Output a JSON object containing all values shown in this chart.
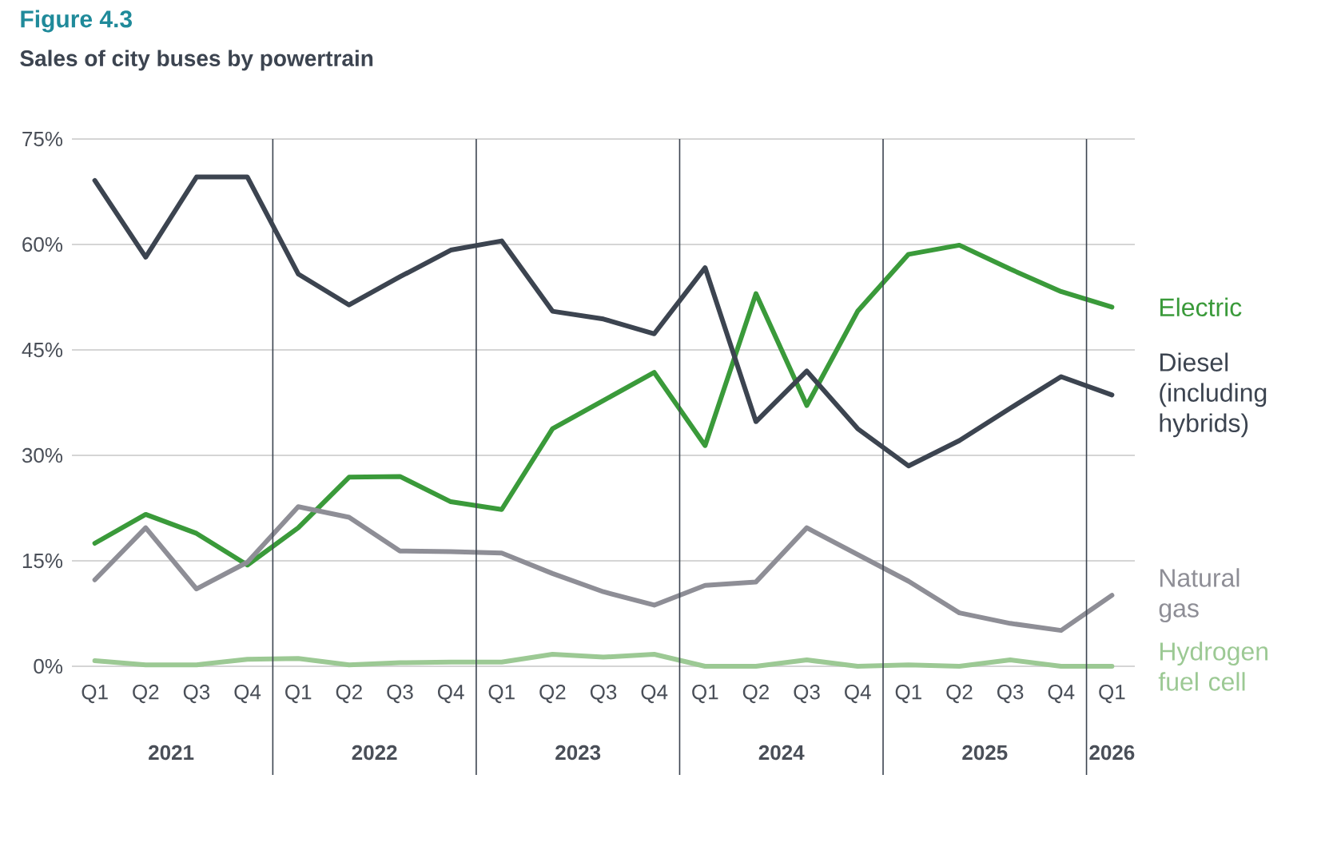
{
  "chart_data": {
    "type": "line",
    "title": "Figure 4.3",
    "subtitle": "Sales of city buses by powertrain",
    "categories": [
      "Q1",
      "Q2",
      "Q3",
      "Q4",
      "Q1",
      "Q2",
      "Q3",
      "Q4",
      "Q1",
      "Q2",
      "Q3",
      "Q4",
      "Q1",
      "Q2",
      "Q3",
      "Q4",
      "Q1",
      "Q2",
      "Q3",
      "Q4",
      "Q1"
    ],
    "annotations": [
      "2021",
      "2022",
      "2023",
      "2024",
      "2025",
      "2026"
    ],
    "series": [
      {
        "name": "Electric",
        "color": "#3a9a3a",
        "values": [
          17.5,
          21.6,
          18.9,
          14.4,
          19.7,
          26.9,
          27.0,
          23.4,
          22.3,
          33.8,
          37.8,
          41.8,
          31.4,
          53.0,
          37.1,
          50.5,
          58.6,
          59.9,
          56.5,
          53.3,
          51.1
        ]
      },
      {
        "name": "Diesel (including hybrids)",
        "color": "#3c4450",
        "values": [
          69.1,
          58.2,
          69.6,
          69.6,
          55.8,
          51.4,
          55.4,
          59.2,
          60.5,
          50.5,
          49.4,
          47.3,
          56.7,
          34.8,
          42.0,
          33.8,
          28.5,
          32.1,
          36.7,
          41.2,
          38.6
        ]
      },
      {
        "name": "Natural gas",
        "color": "#8e8e96",
        "values": [
          12.3,
          19.7,
          11.0,
          14.8,
          22.7,
          21.2,
          16.4,
          16.3,
          16.1,
          13.2,
          10.6,
          8.7,
          11.5,
          12.0,
          19.7,
          15.9,
          12.1,
          7.6,
          6.1,
          5.1,
          10.1
        ]
      },
      {
        "name": "Hydrogen fuel cell",
        "color": "#9cc994",
        "values": [
          0.8,
          0.2,
          0.2,
          1.0,
          1.1,
          0.2,
          0.5,
          0.6,
          0.6,
          1.7,
          1.3,
          1.7,
          0,
          0,
          0.9,
          0,
          0.2,
          0,
          0.9,
          0,
          0
        ]
      }
    ],
    "ylim": [
      0,
      75
    ],
    "yticks": [
      {
        "value": 0,
        "label": "0%"
      },
      {
        "value": 15,
        "label": "15%"
      },
      {
        "value": 30,
        "label": "30%"
      },
      {
        "value": 45,
        "label": "45%"
      },
      {
        "value": 60,
        "label": "60%"
      },
      {
        "value": 75,
        "label": "75%"
      }
    ],
    "grid": "y",
    "line_style": "solid"
  }
}
